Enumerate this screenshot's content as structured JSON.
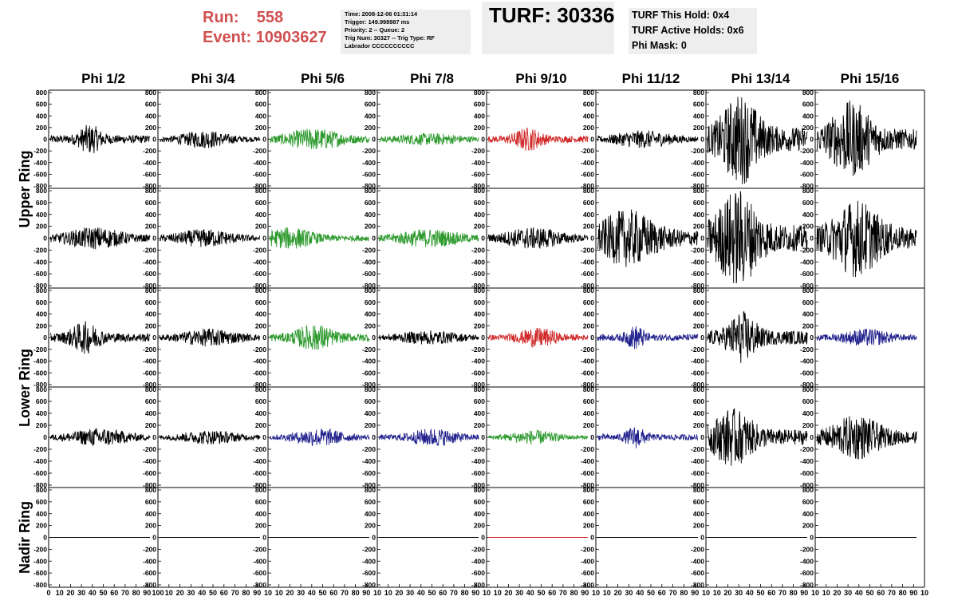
{
  "header": {
    "run_label": "Run:    558",
    "event_label": "Event: 10903627",
    "run_color": "#d05050",
    "info_lines": [
      "Time: 2008-12-06 01:31:14",
      "Trigger: 149.998987 ms",
      "Priority: 2 -- Queue: 2",
      "Trig Num: 30327 -- Trig Type: RF",
      "Labrador CCCCCCCCCC"
    ],
    "turf_title": "TURF: 30336",
    "hold_lines": [
      "TURF This Hold: 0x4",
      "TURF Active Holds: 0x6",
      "Phi Mask: 0"
    ]
  },
  "chart_data": {
    "type": "line",
    "columns": [
      "Phi 1/2",
      "Phi 3/4",
      "Phi 5/6",
      "Phi 7/8",
      "Phi 9/10",
      "Phi 11/12",
      "Phi 13/14",
      "Phi 15/16"
    ],
    "row_labels": [
      {
        "text": "Upper Ring",
        "rows": [
          0,
          1
        ]
      },
      {
        "text": "Lower Ring",
        "rows": [
          2,
          3
        ]
      },
      {
        "text": "Nadir Ring",
        "rows": [
          4
        ]
      }
    ],
    "ylim": [
      -800,
      800
    ],
    "xlim": [
      0,
      100
    ],
    "y_ticks": [
      "800",
      "600",
      "400",
      "200",
      "0",
      "-200",
      "-400",
      "-600",
      "-800"
    ],
    "x_tick_labels_first": [
      "0",
      "10",
      "20",
      "30",
      "40",
      "50",
      "60",
      "70",
      "80",
      "90",
      "100"
    ],
    "x_tick_labels_other": [
      "10",
      "20",
      "30",
      "40",
      "50",
      "60",
      "70",
      "80",
      "90",
      "10"
    ],
    "colors": {
      "black": "#000000",
      "green": "#2e9a2e",
      "red": "#d02828",
      "blue": "#22228e"
    },
    "panels": [
      [
        {
          "color": "black",
          "amp": 150,
          "peak": 420,
          "center": 40,
          "width": 12
        },
        {
          "color": "black",
          "amp": 90,
          "peak": 160,
          "center": 45,
          "width": 25
        },
        {
          "color": "green",
          "amp": 110,
          "peak": 190,
          "center": 45,
          "width": 30
        },
        {
          "color": "green",
          "amp": 60,
          "peak": 100,
          "center": 50,
          "width": 40
        },
        {
          "color": "red",
          "amp": 120,
          "peak": 200,
          "center": 40,
          "width": 15
        },
        {
          "color": "black",
          "amp": 90,
          "peak": 150,
          "center": 45,
          "width": 30
        },
        {
          "color": "black",
          "amp": 450,
          "peak": 800,
          "center": 33,
          "width": 20
        },
        {
          "color": "black",
          "amp": 380,
          "peak": 800,
          "center": 35,
          "width": 22
        }
      ],
      [
        {
          "color": "black",
          "amp": 110,
          "peak": 260,
          "center": 45,
          "width": 30
        },
        {
          "color": "black",
          "amp": 90,
          "peak": 160,
          "center": 45,
          "width": 30
        },
        {
          "color": "green",
          "amp": 110,
          "peak": 210,
          "center": 20,
          "width": 25
        },
        {
          "color": "green",
          "amp": 90,
          "peak": 150,
          "center": 50,
          "width": 35
        },
        {
          "color": "black",
          "amp": 110,
          "peak": 180,
          "center": 45,
          "width": 30
        },
        {
          "color": "black",
          "amp": 280,
          "peak": 550,
          "center": 30,
          "width": 30
        },
        {
          "color": "black",
          "amp": 480,
          "peak": 800,
          "center": 30,
          "width": 22
        },
        {
          "color": "black",
          "amp": 380,
          "peak": 800,
          "center": 40,
          "width": 25
        }
      ],
      [
        {
          "color": "black",
          "amp": 160,
          "peak": 300,
          "center": 35,
          "width": 15
        },
        {
          "color": "black",
          "amp": 90,
          "peak": 150,
          "center": 50,
          "width": 30
        },
        {
          "color": "green",
          "amp": 150,
          "peak": 200,
          "center": 45,
          "width": 18
        },
        {
          "color": "black",
          "amp": 70,
          "peak": 120,
          "center": 50,
          "width": 35
        },
        {
          "color": "red",
          "amp": 100,
          "peak": 160,
          "center": 50,
          "width": 20
        },
        {
          "color": "blue",
          "amp": 120,
          "peak": 290,
          "center": 38,
          "width": 10
        },
        {
          "color": "black",
          "amp": 260,
          "peak": 570,
          "center": 35,
          "width": 15
        },
        {
          "color": "blue",
          "amp": 90,
          "peak": 150,
          "center": 50,
          "width": 25
        }
      ],
      [
        {
          "color": "black",
          "amp": 90,
          "peak": 200,
          "center": 50,
          "width": 30
        },
        {
          "color": "black",
          "amp": 70,
          "peak": 130,
          "center": 50,
          "width": 30
        },
        {
          "color": "blue",
          "amp": 90,
          "peak": 160,
          "center": 50,
          "width": 25
        },
        {
          "color": "blue",
          "amp": 90,
          "peak": 180,
          "center": 55,
          "width": 25
        },
        {
          "color": "green",
          "amp": 70,
          "peak": 120,
          "center": 45,
          "width": 25
        },
        {
          "color": "blue",
          "amp": 110,
          "peak": 230,
          "center": 38,
          "width": 10
        },
        {
          "color": "black",
          "amp": 280,
          "peak": 600,
          "center": 25,
          "width": 22
        },
        {
          "color": "black",
          "amp": 220,
          "peak": 420,
          "center": 40,
          "width": 25
        }
      ],
      [
        {
          "color": "black",
          "amp": 0,
          "peak": 0,
          "center": 50,
          "width": 30
        },
        {
          "color": "black",
          "amp": 0,
          "peak": 0,
          "center": 50,
          "width": 30
        },
        {
          "color": "black",
          "amp": 0,
          "peak": 0,
          "center": 50,
          "width": 30
        },
        {
          "color": "black",
          "amp": 0,
          "peak": 0,
          "center": 50,
          "width": 30
        },
        {
          "color": "red",
          "amp": 0,
          "peak": 0,
          "center": 50,
          "width": 30
        },
        {
          "color": "black",
          "amp": 0,
          "peak": 0,
          "center": 50,
          "width": 30
        },
        {
          "color": "black",
          "amp": 0,
          "peak": 0,
          "center": 50,
          "width": 30
        },
        {
          "color": "black",
          "amp": 0,
          "peak": 0,
          "center": 50,
          "width": 30
        }
      ]
    ]
  }
}
